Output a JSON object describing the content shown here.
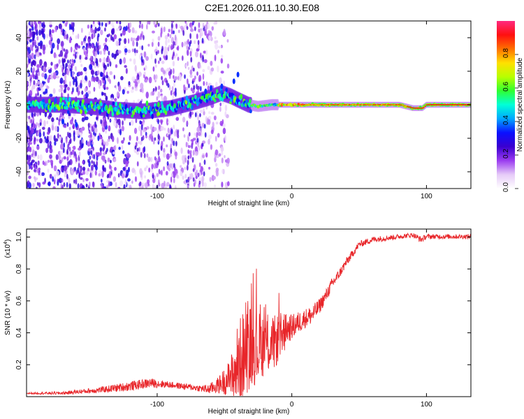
{
  "figure": {
    "title": "C2E1.2026.011.10.30.E08"
  },
  "colors": {
    "snr_line": "#e8262a",
    "frame": "#000000",
    "background": "#ffffff"
  },
  "chart_data": [
    {
      "type": "heatmap",
      "title": "C2E1.2026.011.10.30.E08",
      "xlabel": "Height of straight line (km)",
      "ylabel": "Frequency (Hz)",
      "xlim": [
        -197,
        133
      ],
      "ylim": [
        -50,
        50
      ],
      "x_ticks": [
        -100,
        0,
        100
      ],
      "y_ticks": [
        -40,
        -20,
        0,
        20,
        40
      ],
      "ridge": {
        "x": [
          -190,
          -170,
          -150,
          -130,
          -110,
          -90,
          -75,
          -62,
          -52,
          -45,
          -40,
          -32,
          -25,
          -15,
          0,
          40,
          80,
          90,
          97,
          100,
          133
        ],
        "freq": [
          0,
          0,
          -1,
          -3,
          -4,
          -2,
          1,
          4,
          7,
          5,
          3,
          0,
          -1,
          0,
          0,
          0,
          0,
          -2,
          -2,
          0,
          0
        ]
      },
      "colorbar": {
        "label": "Normalized spectral amplitude",
        "range": [
          0,
          1
        ],
        "ticks": [
          "0.0",
          "0.2",
          "0.4",
          "0.6",
          "0.8"
        ],
        "tick_values": [
          0.0,
          0.2,
          0.4,
          0.6,
          0.8
        ],
        "colormap": [
          "#ffffff",
          "#e6cbf8",
          "#9b3df0",
          "#3a00d0",
          "#0a10ff",
          "#00a8ff",
          "#00ffd8",
          "#30ff30",
          "#b8ff00",
          "#ffe000",
          "#ff7000",
          "#ff1010",
          "#ff2a80"
        ]
      }
    },
    {
      "type": "line",
      "xlabel": "Height of straight line (km)",
      "ylabel": "SNR (10 * v/v)",
      "y_scale_label": "(x10",
      "y_scale_exponent": "4",
      "y_scale_suffix": ")",
      "xlim": [
        -197,
        133
      ],
      "ylim": [
        0,
        1.05
      ],
      "x_ticks": [
        -100,
        0,
        100
      ],
      "y_ticks": [
        "0.2",
        "0.4",
        "0.6",
        "0.8",
        "1.0"
      ],
      "y_tick_values": [
        0.2,
        0.4,
        0.6,
        0.8,
        1.0
      ],
      "series": [
        {
          "name": "SNR",
          "color": "#e8262a",
          "x": [
            -197,
            -170,
            -140,
            -120,
            -105,
            -90,
            -70,
            -62,
            -55,
            -45,
            -40,
            -35,
            -30,
            -25,
            -20,
            -15,
            -10,
            -5,
            0,
            5,
            10,
            15,
            20,
            25,
            30,
            35,
            40,
            50,
            60,
            80,
            90,
            96,
            100,
            110,
            133
          ],
          "y": [
            0.02,
            0.02,
            0.04,
            0.06,
            0.08,
            0.07,
            0.05,
            0.04,
            0.06,
            0.1,
            0.18,
            0.25,
            0.3,
            0.28,
            0.32,
            0.3,
            0.35,
            0.4,
            0.42,
            0.45,
            0.48,
            0.5,
            0.55,
            0.62,
            0.7,
            0.76,
            0.83,
            0.95,
            0.98,
            1.0,
            1.01,
            0.98,
            1.0,
            1.0,
            1.0
          ],
          "noise": [
            0.005,
            0.01,
            0.02,
            0.03,
            0.03,
            0.02,
            0.02,
            0.03,
            0.05,
            0.12,
            0.2,
            0.22,
            0.2,
            0.18,
            0.15,
            0.14,
            0.12,
            0.1,
            0.08,
            0.07,
            0.06,
            0.06,
            0.05,
            0.04,
            0.04,
            0.03,
            0.03,
            0.02,
            0.02,
            0.015,
            0.015,
            0.02,
            0.015,
            0.015,
            0.015
          ]
        }
      ]
    }
  ]
}
